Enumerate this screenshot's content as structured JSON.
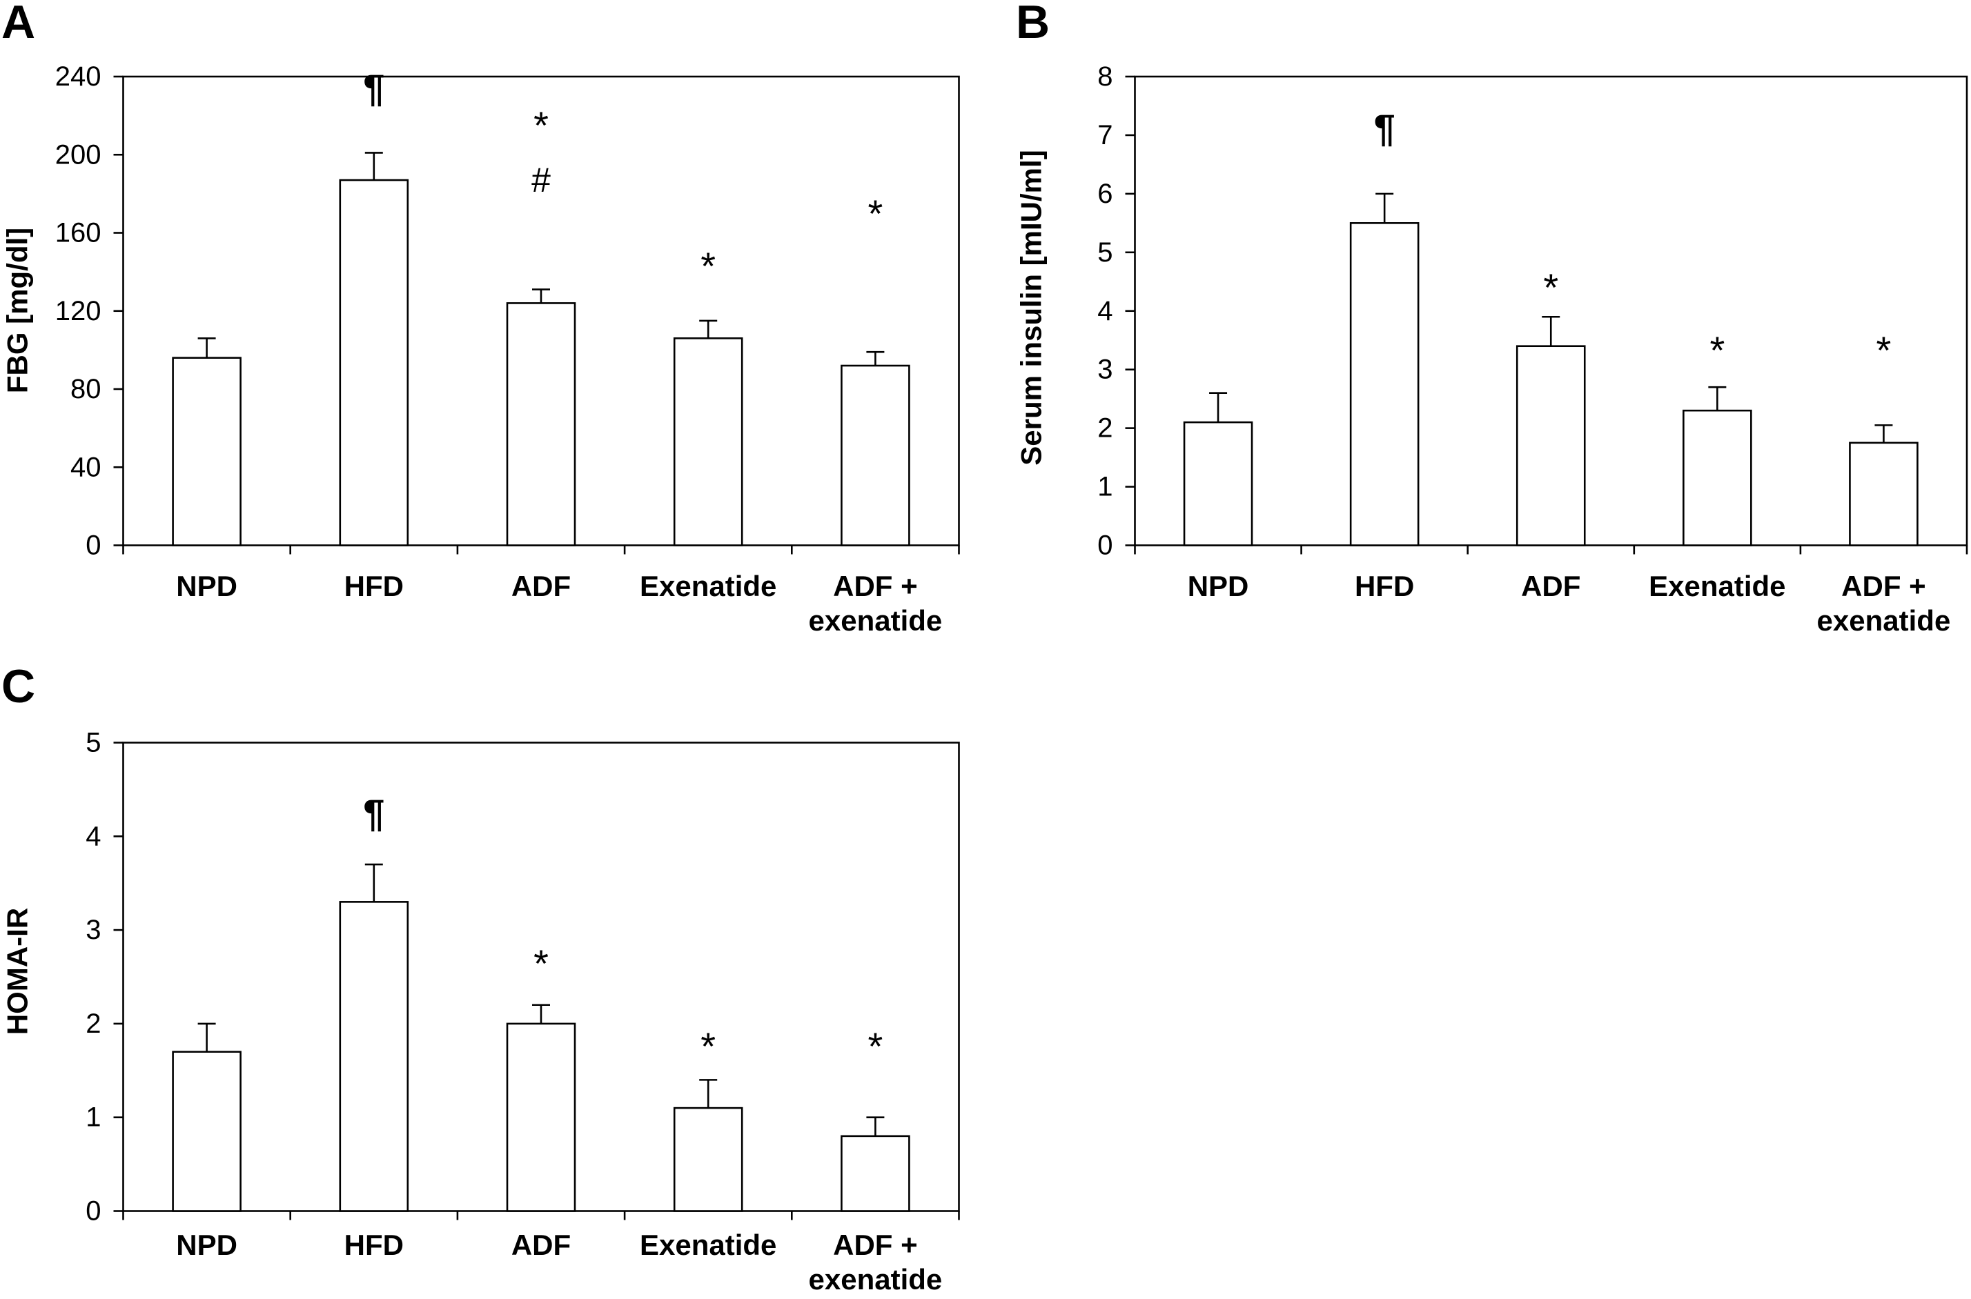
{
  "colors": {
    "background": "#ffffff",
    "bar_fill": "#ffffff",
    "line": "#000000"
  },
  "chart_data": [
    {
      "panel": "A",
      "type": "bar",
      "categories": [
        "NPD",
        "HFD",
        "ADF",
        "Exenatide",
        "ADF + exenatide"
      ],
      "values": [
        96,
        187,
        124,
        106,
        92
      ],
      "errors": [
        10,
        14,
        7,
        9,
        7
      ],
      "annotations": [
        [],
        [
          "¶"
        ],
        [
          "*",
          "#"
        ],
        [
          "*"
        ],
        [
          "*"
        ]
      ],
      "xlabel": "",
      "ylabel": "FBG [mg/dl]",
      "ylim": [
        0,
        240
      ],
      "yticks": [
        0,
        40,
        80,
        120,
        160,
        200,
        240
      ],
      "grid": false
    },
    {
      "panel": "B",
      "type": "bar",
      "categories": [
        "NPD",
        "HFD",
        "ADF",
        "Exenatide",
        "ADF + exenatide"
      ],
      "values": [
        2.1,
        5.5,
        3.4,
        2.3,
        1.75
      ],
      "errors": [
        0.5,
        0.5,
        0.5,
        0.4,
        0.3
      ],
      "annotations": [
        [],
        [
          "¶"
        ],
        [
          "*"
        ],
        [
          "*"
        ],
        [
          "*"
        ]
      ],
      "xlabel": "",
      "ylabel": "Serum insulin [mIU/ml]",
      "ylim": [
        0,
        8
      ],
      "yticks": [
        0,
        1,
        2,
        3,
        4,
        5,
        6,
        7,
        8
      ],
      "grid": false
    },
    {
      "panel": "C",
      "type": "bar",
      "categories": [
        "NPD",
        "HFD",
        "ADF",
        "Exenatide",
        "ADF + exenatide"
      ],
      "values": [
        1.7,
        3.3,
        2.0,
        1.1,
        0.8
      ],
      "errors": [
        0.3,
        0.4,
        0.2,
        0.3,
        0.2
      ],
      "annotations": [
        [],
        [
          "¶"
        ],
        [
          "*"
        ],
        [
          "*"
        ],
        [
          "*"
        ]
      ],
      "xlabel": "",
      "ylabel": "HOMA-IR",
      "ylim": [
        0,
        5
      ],
      "yticks": [
        0,
        1,
        2,
        3,
        4,
        5
      ],
      "grid": false
    }
  ]
}
